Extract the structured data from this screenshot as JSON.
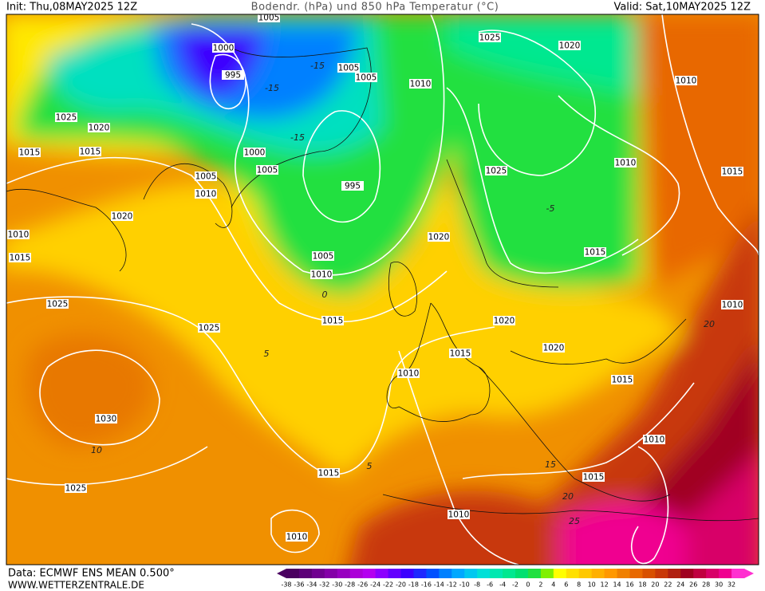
{
  "header": {
    "init": "Init: Thu,08MAY2025 12Z",
    "title": "Bodendr. (hPa) und 850 hPa Temperatur (°C)",
    "valid": "Valid: Sat,10MAY2025 12Z"
  },
  "footer": {
    "data": "Data: ECMWF ENS MEAN 0.500°",
    "site": "WWW.WETTERZENTRALE.DE"
  },
  "isobar_labels": [
    "1005",
    "1000",
    "995",
    "1025",
    "1020",
    "1005",
    "1005",
    "1010",
    "1010",
    "1025",
    "1020",
    "1015",
    "1015",
    "1000",
    "1005",
    "1005",
    "1010",
    "995",
    "1010",
    "1015",
    "1025",
    "1020",
    "1020",
    "1010",
    "1015",
    "1005",
    "1010",
    "1015",
    "1025",
    "1010",
    "1015",
    "1025",
    "1020",
    "1020",
    "1015",
    "1010",
    "1015",
    "1030",
    "1010",
    "1015",
    "1025",
    "1015",
    "1010",
    "1010"
  ],
  "temperature_labels": [
    "-15",
    "-15",
    "-15",
    "-5",
    "0",
    "5",
    "10",
    "5",
    "15",
    "20",
    "25",
    "20"
  ],
  "colorbar": {
    "labels": [
      -38,
      -36,
      -34,
      -32,
      -30,
      -28,
      -26,
      -24,
      -22,
      -20,
      -18,
      -16,
      -14,
      -12,
      -10,
      -8,
      -6,
      -4,
      -2,
      0,
      2,
      4,
      6,
      8,
      10,
      12,
      14,
      16,
      18,
      20,
      22,
      24,
      26,
      28,
      30,
      32
    ],
    "colors": [
      "#4a0060",
      "#5c0078",
      "#700090",
      "#8400a8",
      "#9800c0",
      "#ac00d8",
      "#b400f0",
      "#8c00ff",
      "#6400ff",
      "#3c00ff",
      "#1e28ff",
      "#0050ff",
      "#0080ff",
      "#00a8ff",
      "#00c8f0",
      "#00e0d8",
      "#00e8b0",
      "#00e890",
      "#00e070",
      "#20e040",
      "#80f000",
      "#ffff00",
      "#ffe000",
      "#ffc800",
      "#ffb000",
      "#ff9800",
      "#f08000",
      "#e86800",
      "#d85000",
      "#c83808",
      "#b02010",
      "#a00020",
      "#c00040",
      "#d80068",
      "#f00090",
      "#ff30d0"
    ]
  }
}
